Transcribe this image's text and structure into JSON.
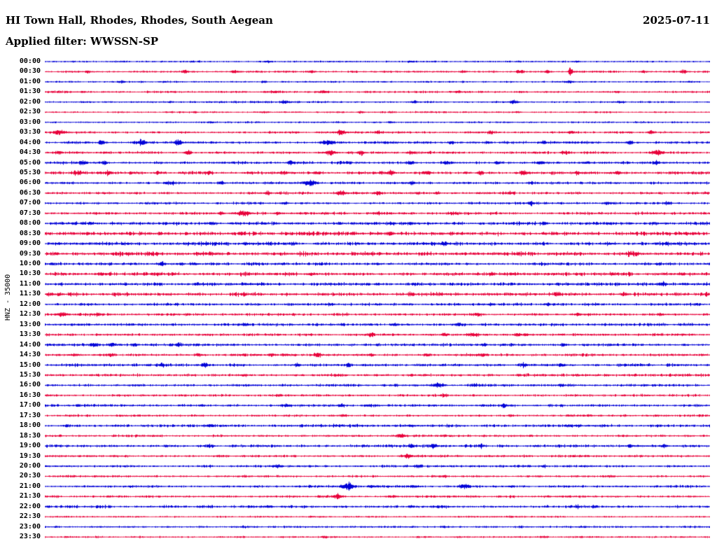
{
  "header": {
    "station_title": "HI Town Hall, Rhodes, Rhodes, South Aegean",
    "date": "2025-07-11",
    "filter_label": "Applied filter: WWSSN-SP"
  },
  "y_axis": {
    "channel_label": "HNZ - 35000"
  },
  "chart_data": {
    "type": "line",
    "subtype": "helicorder",
    "title": "HI Town Hall, Rhodes, Rhodes, South Aegean",
    "date": "2025-07-11",
    "filter": "WWSSN-SP",
    "channel": "HNZ",
    "scale": 35000,
    "minutes_per_row": 30,
    "legend_position": "none",
    "grid": false,
    "colors": {
      "blue": "#0000d7",
      "red": "#e8003a"
    },
    "rows": [
      {
        "time": "00:00",
        "color": "blue",
        "noise": 0.65,
        "events": [
          [
            0.335,
            1.6
          ],
          [
            0.55,
            1.2
          ],
          [
            0.8,
            1.2
          ]
        ]
      },
      {
        "time": "00:30",
        "color": "red",
        "noise": 0.75,
        "events": [
          [
            0.065,
            1.8
          ],
          [
            0.21,
            2.2
          ],
          [
            0.285,
            1.8
          ],
          [
            0.4,
            1.6
          ],
          [
            0.63,
            1.6
          ],
          [
            0.715,
            3.2
          ],
          [
            0.755,
            2.2
          ],
          [
            0.79,
            8.5,
            0.0018
          ],
          [
            0.9,
            1.8
          ],
          [
            0.96,
            2.6
          ]
        ]
      },
      {
        "time": "01:00",
        "color": "blue",
        "noise": 0.65,
        "events": [
          [
            0.115,
            2.2
          ],
          [
            0.33,
            1.2
          ],
          [
            0.79,
            1.4
          ]
        ]
      },
      {
        "time": "01:30",
        "color": "red",
        "noise": 0.85,
        "events": [
          [
            0.345,
            1.8
          ],
          [
            0.42,
            1.8
          ],
          [
            0.62,
            1.4
          ],
          [
            0.86,
            1.3
          ]
        ]
      },
      {
        "time": "02:00",
        "color": "blue",
        "noise": 0.75,
        "events": [
          [
            0.36,
            2.2
          ],
          [
            0.555,
            2.2
          ],
          [
            0.705,
            3.2,
            0.004
          ],
          [
            0.865,
            1.4
          ]
        ]
      },
      {
        "time": "02:30",
        "color": "red",
        "noise": 0.7,
        "events": [
          [
            0.33,
            1.3
          ],
          [
            0.475,
            1.3
          ],
          [
            0.71,
            1.1
          ]
        ]
      },
      {
        "time": "03:00",
        "color": "blue",
        "noise": 0.65,
        "events": [
          [
            0.25,
            1.1
          ],
          [
            0.52,
            1.1
          ]
        ]
      },
      {
        "time": "03:30",
        "color": "red",
        "noise": 0.95,
        "events": [
          [
            0.02,
            2.6,
            0.006
          ],
          [
            0.445,
            3.8,
            0.004
          ],
          [
            0.5,
            2.2
          ],
          [
            0.67,
            1.8
          ],
          [
            0.79,
            1.8
          ],
          [
            0.91,
            2.2
          ]
        ]
      },
      {
        "time": "04:00",
        "color": "blue",
        "noise": 1.05,
        "events": [
          [
            0.085,
            2.8
          ],
          [
            0.145,
            4.2,
            0.005
          ],
          [
            0.2,
            4.2,
            0.004
          ],
          [
            0.425,
            4.2,
            0.006
          ],
          [
            0.61,
            2.2
          ],
          [
            0.665,
            1.8
          ],
          [
            0.75,
            1.8
          ],
          [
            0.88,
            2.2
          ]
        ]
      },
      {
        "time": "04:30",
        "color": "red",
        "noise": 1.05,
        "events": [
          [
            0.02,
            2.2
          ],
          [
            0.215,
            3.6
          ],
          [
            0.43,
            3.8,
            0.005
          ],
          [
            0.475,
            2.6
          ],
          [
            0.55,
            1.8
          ],
          [
            0.78,
            2.6
          ],
          [
            0.92,
            3.2,
            0.006
          ]
        ]
      },
      {
        "time": "05:00",
        "color": "blue",
        "noise": 1.2,
        "events": [
          [
            0.055,
            2.2
          ],
          [
            0.09,
            2.2
          ],
          [
            0.37,
            3.2
          ],
          [
            0.455,
            1.8
          ],
          [
            0.55,
            2.2
          ],
          [
            0.605,
            2.6
          ],
          [
            0.68,
            2.2
          ],
          [
            0.745,
            2.2
          ],
          [
            0.815,
            1.8
          ],
          [
            0.92,
            2.2
          ]
        ]
      },
      {
        "time": "05:30",
        "color": "red",
        "noise": 1.3,
        "events": [
          [
            0.05,
            2.6,
            0.005
          ],
          [
            0.095,
            2.6
          ],
          [
            0.17,
            2.2
          ],
          [
            0.245,
            2.6
          ],
          [
            0.36,
            2.2
          ],
          [
            0.41,
            2.2
          ],
          [
            0.52,
            3.2
          ],
          [
            0.575,
            2.2
          ],
          [
            0.655,
            2.2
          ],
          [
            0.72,
            2.2
          ],
          [
            0.8,
            2.2
          ],
          [
            0.86,
            2.2
          ]
        ]
      },
      {
        "time": "06:00",
        "color": "blue",
        "noise": 1.05,
        "events": [
          [
            0.19,
            2.2
          ],
          [
            0.265,
            3.2
          ],
          [
            0.4,
            4.2,
            0.006
          ],
          [
            0.55,
            2.2
          ],
          [
            0.73,
            1.4
          ]
        ]
      },
      {
        "time": "06:30",
        "color": "red",
        "noise": 1.05,
        "events": [
          [
            0.335,
            2.2
          ],
          [
            0.445,
            4.2,
            0.005
          ],
          [
            0.5,
            2.6
          ],
          [
            0.59,
            2.2
          ],
          [
            0.7,
            1.4
          ]
        ]
      },
      {
        "time": "07:00",
        "color": "blue",
        "noise": 0.95,
        "events": [
          [
            0.36,
            1.4
          ],
          [
            0.73,
            3.2
          ],
          [
            0.845,
            1.8
          ],
          [
            0.935,
            2.2
          ]
        ]
      },
      {
        "time": "07:30",
        "color": "red",
        "noise": 1.15,
        "events": [
          [
            0.265,
            2.2
          ],
          [
            0.3,
            3.6,
            0.005
          ],
          [
            0.35,
            2.2
          ],
          [
            0.5,
            1.8
          ],
          [
            0.615,
            1.4
          ]
        ]
      },
      {
        "time": "08:00",
        "color": "blue",
        "noise": 1.55,
        "events": [
          [
            0.25,
            1.3
          ],
          [
            0.52,
            1.3
          ],
          [
            0.75,
            1.3
          ]
        ]
      },
      {
        "time": "08:30",
        "color": "red",
        "noise": 1.75,
        "events": [
          [
            0.52,
            2.2
          ],
          [
            0.75,
            1.3
          ]
        ]
      },
      {
        "time": "09:00",
        "color": "blue",
        "noise": 1.55,
        "events": [
          [
            0.3,
            1.3
          ],
          [
            0.6,
            1.3
          ]
        ]
      },
      {
        "time": "09:30",
        "color": "red",
        "noise": 1.75,
        "events": [
          [
            0.25,
            1.3
          ],
          [
            0.88,
            2.2
          ]
        ]
      },
      {
        "time": "10:00",
        "color": "blue",
        "noise": 1.3,
        "events": [
          [
            0.175,
            2.6
          ],
          [
            0.225,
            1.8
          ],
          [
            0.5,
            1.3
          ]
        ]
      },
      {
        "time": "10:30",
        "color": "red",
        "noise": 1.55,
        "events": [
          [
            0.4,
            1.3
          ],
          [
            0.65,
            1.3
          ]
        ]
      },
      {
        "time": "11:00",
        "color": "blue",
        "noise": 1.45,
        "events": [
          [
            0.3,
            1.3
          ],
          [
            0.5,
            1.3
          ],
          [
            0.93,
            1.8
          ]
        ]
      },
      {
        "time": "11:30",
        "color": "red",
        "noise": 1.65,
        "events": [
          [
            0.55,
            1.3
          ],
          [
            0.87,
            1.8
          ]
        ]
      },
      {
        "time": "12:00",
        "color": "blue",
        "noise": 1.15,
        "events": [
          [
            0.43,
            1.8
          ],
          [
            0.67,
            1.8
          ],
          [
            0.755,
            2.2
          ]
        ]
      },
      {
        "time": "12:30",
        "color": "red",
        "noise": 1.2,
        "events": [
          [
            0.025,
            3.2,
            0.005
          ],
          [
            0.08,
            1.8
          ],
          [
            0.65,
            2.2
          ],
          [
            0.8,
            1.8
          ],
          [
            0.925,
            1.8
          ]
        ]
      },
      {
        "time": "13:00",
        "color": "blue",
        "noise": 1.15,
        "events": [
          [
            0.3,
            1.3
          ],
          [
            0.525,
            1.8
          ],
          [
            0.62,
            1.4
          ]
        ]
      },
      {
        "time": "13:30",
        "color": "red",
        "noise": 1.15,
        "events": [
          [
            0.49,
            2.6
          ],
          [
            0.6,
            2.2
          ],
          [
            0.645,
            2.2
          ],
          [
            0.71,
            1.8
          ]
        ]
      },
      {
        "time": "14:00",
        "color": "blue",
        "noise": 1.15,
        "events": [
          [
            0.075,
            3.2
          ],
          [
            0.1,
            3.2
          ],
          [
            0.135,
            2.2
          ],
          [
            0.2,
            2.2
          ],
          [
            0.66,
            2.2
          ],
          [
            0.78,
            1.8
          ]
        ]
      },
      {
        "time": "14:30",
        "color": "red",
        "noise": 1.2,
        "events": [
          [
            0.045,
            2.2
          ],
          [
            0.1,
            2.2
          ],
          [
            0.23,
            1.8
          ],
          [
            0.34,
            2.2
          ],
          [
            0.41,
            2.2
          ],
          [
            0.49,
            1.8
          ],
          [
            0.575,
            2.2
          ],
          [
            0.66,
            1.8
          ]
        ]
      },
      {
        "time": "15:00",
        "color": "blue",
        "noise": 1.2,
        "events": [
          [
            0.175,
            2.2
          ],
          [
            0.24,
            3.2
          ],
          [
            0.38,
            2.2
          ],
          [
            0.455,
            1.8
          ],
          [
            0.72,
            2.2
          ],
          [
            0.775,
            2.2
          ]
        ]
      },
      {
        "time": "15:30",
        "color": "red",
        "noise": 1.15,
        "events": [
          [
            0.3,
            1.3
          ],
          [
            0.55,
            1.3
          ],
          [
            0.8,
            1.3
          ]
        ]
      },
      {
        "time": "16:00",
        "color": "blue",
        "noise": 1.05,
        "events": [
          [
            0.59,
            3.2,
            0.005
          ],
          [
            0.645,
            1.8
          ],
          [
            0.775,
            1.4
          ]
        ]
      },
      {
        "time": "16:30",
        "color": "red",
        "noise": 0.95,
        "events": [
          [
            0.35,
            1.1
          ],
          [
            0.6,
            1.1
          ]
        ]
      },
      {
        "time": "17:00",
        "color": "blue",
        "noise": 1.05,
        "events": [
          [
            0.365,
            1.8
          ],
          [
            0.445,
            1.8
          ],
          [
            0.485,
            1.8
          ],
          [
            0.69,
            2.6
          ]
        ]
      },
      {
        "time": "17:30",
        "color": "red",
        "noise": 0.9,
        "events": [
          [
            0.45,
            1.1
          ],
          [
            0.7,
            1.1
          ]
        ]
      },
      {
        "time": "18:00",
        "color": "blue",
        "noise": 1.15,
        "events": [
          [
            0.25,
            1.3
          ],
          [
            0.55,
            1.3
          ],
          [
            0.8,
            1.3
          ]
        ]
      },
      {
        "time": "18:30",
        "color": "red",
        "noise": 0.95,
        "events": [
          [
            0.535,
            3.2,
            0.004
          ],
          [
            0.6,
            1.4
          ]
        ]
      },
      {
        "time": "19:00",
        "color": "blue",
        "noise": 1.15,
        "events": [
          [
            0.25,
            1.4
          ],
          [
            0.55,
            2.2
          ],
          [
            0.585,
            3.2
          ],
          [
            0.655,
            1.8
          ],
          [
            0.88,
            2.2
          ],
          [
            0.93,
            1.8
          ]
        ]
      },
      {
        "time": "19:30",
        "color": "red",
        "noise": 0.9,
        "events": [
          [
            0.545,
            4.2,
            0.003
          ],
          [
            0.62,
            1.4
          ]
        ]
      },
      {
        "time": "20:00",
        "color": "blue",
        "noise": 1.05,
        "events": [
          [
            0.35,
            2.2
          ],
          [
            0.56,
            1.8
          ],
          [
            0.75,
            1.4
          ]
        ]
      },
      {
        "time": "20:30",
        "color": "red",
        "noise": 0.8,
        "events": [
          [
            0.3,
            1.1
          ],
          [
            0.6,
            1.1
          ],
          [
            0.85,
            1.3
          ]
        ]
      },
      {
        "time": "21:00",
        "color": "blue",
        "noise": 1.05,
        "events": [
          [
            0.455,
            5.5,
            0.006
          ],
          [
            0.49,
            2.6
          ],
          [
            0.555,
            2.2
          ],
          [
            0.63,
            3.2,
            0.005
          ],
          [
            0.7,
            1.8
          ]
        ]
      },
      {
        "time": "21:30",
        "color": "red",
        "noise": 0.9,
        "events": [
          [
            0.44,
            3.8,
            0.004
          ],
          [
            0.52,
            1.4
          ]
        ]
      },
      {
        "time": "22:00",
        "color": "blue",
        "noise": 1.15,
        "events": [
          [
            0.335,
            1.8
          ],
          [
            0.55,
            1.3
          ],
          [
            0.8,
            1.3
          ]
        ]
      },
      {
        "time": "22:30",
        "color": "red",
        "noise": 0.6,
        "events": [
          [
            0.4,
            0.9
          ],
          [
            0.7,
            0.9
          ]
        ]
      },
      {
        "time": "23:00",
        "color": "blue",
        "noise": 0.8,
        "events": [
          [
            0.3,
            1.1
          ],
          [
            0.6,
            1.1
          ]
        ]
      },
      {
        "time": "23:30",
        "color": "red",
        "noise": 0.7,
        "events": [
          [
            0.42,
            1.8
          ],
          [
            0.75,
            0.9
          ]
        ]
      }
    ]
  }
}
